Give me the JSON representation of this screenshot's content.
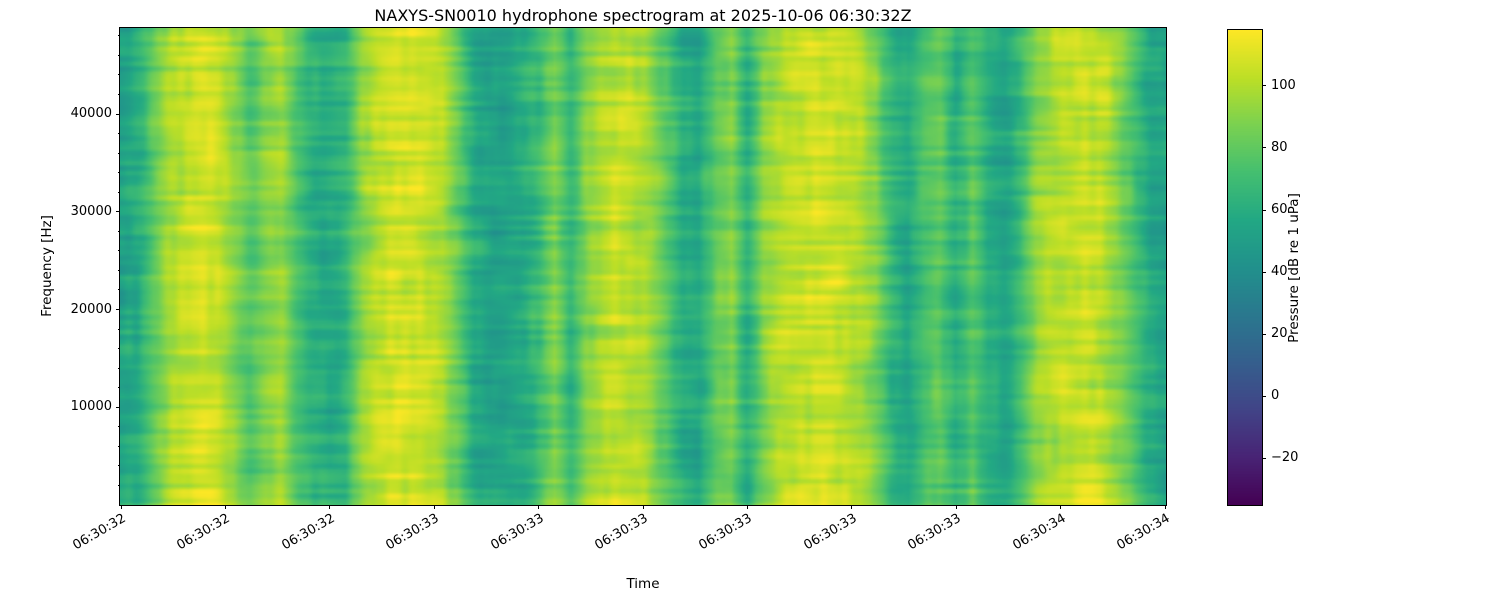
{
  "figure": {
    "background": "#ffffff",
    "text_color": "#000000"
  },
  "chart_data": {
    "type": "heatmap",
    "title": "NAXYS-SN0010 hydrophone spectrogram at 2025-10-06 06:30:32Z",
    "xlabel": "Time",
    "ylabel": "Frequency [Hz]",
    "x_tick_labels": [
      "06:30:32",
      "06:30:32",
      "06:30:32",
      "06:30:33",
      "06:30:33",
      "06:30:33",
      "06:30:33",
      "06:30:33",
      "06:30:33",
      "06:30:34",
      "06:30:34"
    ],
    "y_ticks": [
      10000,
      20000,
      30000,
      40000
    ],
    "y_range_hz": [
      0,
      48800
    ],
    "colormap": "viridis",
    "colormap_stops": [
      "#440154",
      "#482475",
      "#414487",
      "#355f8d",
      "#2a788e",
      "#21918c",
      "#22a884",
      "#44bf70",
      "#7ad151",
      "#bddf26",
      "#fde725"
    ],
    "colorbar": {
      "label": "Pressure [dB re 1 uPa]",
      "tick_values": [
        100,
        80,
        60,
        40,
        20,
        0,
        -20
      ],
      "tick_labels": [
        "100",
        "80",
        "60",
        "40",
        "20",
        "0",
        "−20"
      ],
      "vmin": -35,
      "vmax": 118
    },
    "time_profile_db": [
      54,
      58,
      80,
      98,
      104,
      107,
      106,
      92,
      78,
      90,
      97,
      72,
      60,
      58,
      65,
      92,
      102,
      106,
      108,
      106,
      100,
      80,
      58,
      52,
      54,
      58,
      68,
      88,
      66,
      90,
      100,
      104,
      101,
      96,
      78,
      58,
      56,
      80,
      88,
      62,
      90,
      100,
      105,
      107,
      106,
      104,
      98,
      88,
      64,
      56,
      74,
      80,
      60,
      78,
      58,
      52,
      68,
      92,
      99,
      103,
      105,
      102,
      93,
      75,
      58,
      54
    ],
    "texture": {
      "striation_amp_db": 8,
      "blob_amp_db": 5,
      "streak_amp_db": 4,
      "bottom_boost_db": 9,
      "seed": 7
    }
  }
}
